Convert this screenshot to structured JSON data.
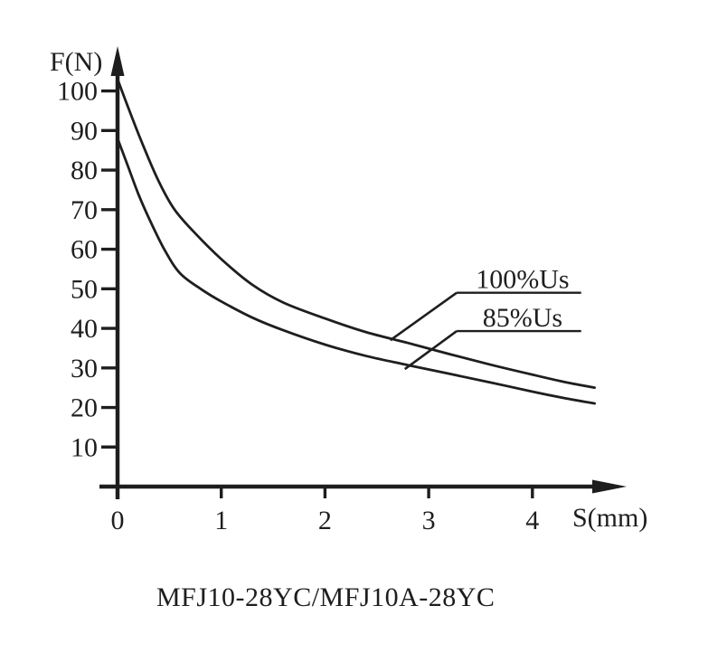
{
  "page": {
    "background": "#ffffff",
    "ink": "#1e1e1e"
  },
  "caption": "MFJ10-28YC/MFJ10A-28YC",
  "chart_data": {
    "type": "line",
    "title": "",
    "xlabel": "S(mm)",
    "ylabel": "F(N)",
    "xlim": [
      0,
      4.9
    ],
    "ylim": [
      0,
      110
    ],
    "x_ticks": [
      0,
      1,
      2,
      3,
      4
    ],
    "y_ticks": [
      10,
      20,
      30,
      40,
      50,
      60,
      70,
      80,
      90,
      100
    ],
    "grid": false,
    "legend_position": "inline-leader-labels",
    "series": [
      {
        "name": "100%Us",
        "x": [
          0,
          0.1,
          0.25,
          0.4,
          0.55,
          0.75,
          1.0,
          1.3,
          1.6,
          2.0,
          2.4,
          2.8,
          3.2,
          3.6,
          4.0,
          4.3,
          4.6
        ],
        "y": [
          103,
          96,
          86,
          77,
          70,
          64,
          57.5,
          51,
          46.5,
          42.5,
          39,
          36.3,
          33.5,
          30.8,
          28.3,
          26.5,
          25
        ]
      },
      {
        "name": "85%Us",
        "x": [
          0,
          0.1,
          0.2,
          0.3,
          0.45,
          0.6,
          0.8,
          1.0,
          1.3,
          1.6,
          2.0,
          2.4,
          2.8,
          3.2,
          3.6,
          4.0,
          4.3,
          4.6
        ],
        "y": [
          88,
          81,
          74,
          68,
          60,
          54,
          50,
          46.8,
          42.7,
          39.5,
          35.9,
          33,
          30.7,
          28.5,
          26.3,
          24,
          22.4,
          21
        ]
      }
    ],
    "annotations": [
      {
        "label": "100%Us",
        "underline": {
          "x1": 3.27,
          "x2": 4.47,
          "y": 49.0
        },
        "leader_to": {
          "x": 2.63,
          "y": 37.0
        }
      },
      {
        "label": "85%Us",
        "underline": {
          "x1": 3.27,
          "x2": 4.47,
          "y": 39.3
        },
        "leader_to": {
          "x": 2.77,
          "y": 29.7
        }
      }
    ]
  }
}
